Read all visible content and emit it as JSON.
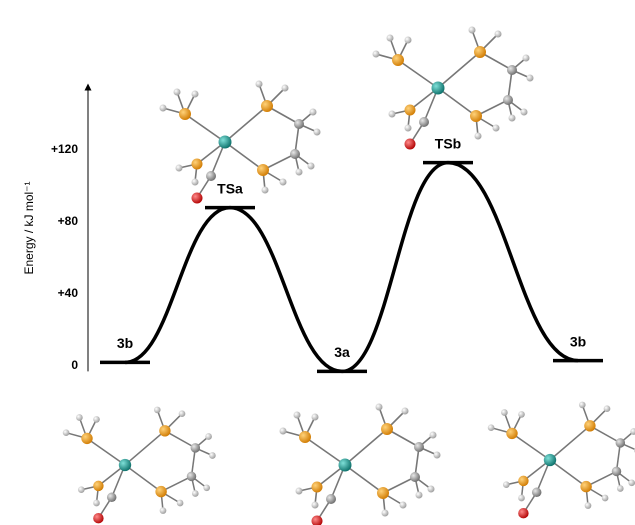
{
  "chart_data": {
    "type": "line",
    "y_label": "Energy / kJ mol⁻¹",
    "categories": [
      "3b",
      "TSa",
      "3a",
      "TSb",
      "3b"
    ],
    "values": [
      2,
      88,
      -3,
      113,
      3
    ],
    "color": "#000000",
    "ylim": [
      -3,
      155
    ],
    "yticks": [
      0,
      {
        "value": 40,
        "label": "+40"
      },
      {
        "value": 80,
        "label": "+80"
      },
      {
        "value": 120,
        "label": "+120"
      }
    ],
    "grid": false
  }
}
